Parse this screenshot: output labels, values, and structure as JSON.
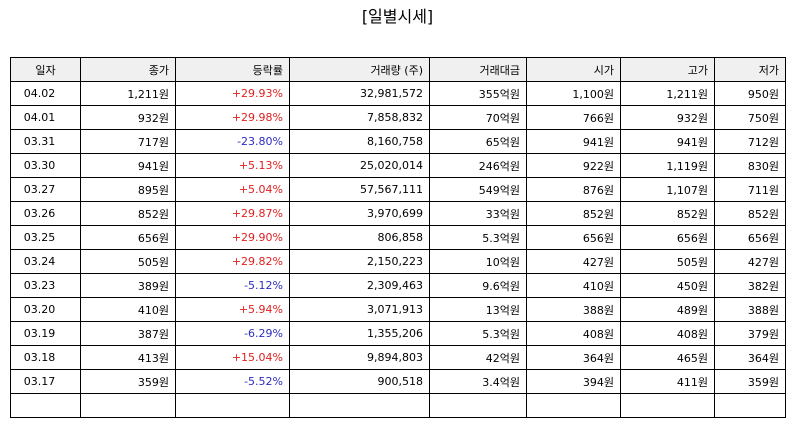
{
  "title": "[일별시세]",
  "columns": [
    "일자",
    "종가",
    "등락률",
    "거래량 (주)",
    "거래대금",
    "시가",
    "고가",
    "저가"
  ],
  "rows": [
    {
      "date": "04.02",
      "close": "1,211원",
      "change": "+29.93%",
      "dir": "up",
      "volume": "32,981,572",
      "amount": "355억원",
      "open": "1,100원",
      "high": "1,211원",
      "low": "950원"
    },
    {
      "date": "04.01",
      "close": "932원",
      "change": "+29.98%",
      "dir": "up",
      "volume": "7,858,832",
      "amount": "70억원",
      "open": "766원",
      "high": "932원",
      "low": "750원"
    },
    {
      "date": "03.31",
      "close": "717원",
      "change": "-23.80%",
      "dir": "down",
      "volume": "8,160,758",
      "amount": "65억원",
      "open": "941원",
      "high": "941원",
      "low": "712원"
    },
    {
      "date": "03.30",
      "close": "941원",
      "change": "+5.13%",
      "dir": "up",
      "volume": "25,020,014",
      "amount": "246억원",
      "open": "922원",
      "high": "1,119원",
      "low": "830원"
    },
    {
      "date": "03.27",
      "close": "895원",
      "change": "+5.04%",
      "dir": "up",
      "volume": "57,567,111",
      "amount": "549억원",
      "open": "876원",
      "high": "1,107원",
      "low": "711원"
    },
    {
      "date": "03.26",
      "close": "852원",
      "change": "+29.87%",
      "dir": "up",
      "volume": "3,970,699",
      "amount": "33억원",
      "open": "852원",
      "high": "852원",
      "low": "852원"
    },
    {
      "date": "03.25",
      "close": "656원",
      "change": "+29.90%",
      "dir": "up",
      "volume": "806,858",
      "amount": "5.3억원",
      "open": "656원",
      "high": "656원",
      "low": "656원"
    },
    {
      "date": "03.24",
      "close": "505원",
      "change": "+29.82%",
      "dir": "up",
      "volume": "2,150,223",
      "amount": "10억원",
      "open": "427원",
      "high": "505원",
      "low": "427원"
    },
    {
      "date": "03.23",
      "close": "389원",
      "change": "-5.12%",
      "dir": "down",
      "volume": "2,309,463",
      "amount": "9.6억원",
      "open": "410원",
      "high": "450원",
      "low": "382원"
    },
    {
      "date": "03.20",
      "close": "410원",
      "change": "+5.94%",
      "dir": "up",
      "volume": "3,071,913",
      "amount": "13억원",
      "open": "388원",
      "high": "489원",
      "low": "388원"
    },
    {
      "date": "03.19",
      "close": "387원",
      "change": "-6.29%",
      "dir": "down",
      "volume": "1,355,206",
      "amount": "5.3억원",
      "open": "408원",
      "high": "408원",
      "low": "379원"
    },
    {
      "date": "03.18",
      "close": "413원",
      "change": "+15.04%",
      "dir": "up",
      "volume": "9,894,803",
      "amount": "42억원",
      "open": "364원",
      "high": "465원",
      "low": "364원"
    },
    {
      "date": "03.17",
      "close": "359원",
      "change": "-5.52%",
      "dir": "down",
      "volume": "900,518",
      "amount": "3.4억원",
      "open": "394원",
      "high": "411원",
      "low": "359원"
    }
  ],
  "colors": {
    "up": "#e02020",
    "down": "#2d2dc0",
    "header_bg": "#f0f0f0",
    "border": "#000000"
  }
}
